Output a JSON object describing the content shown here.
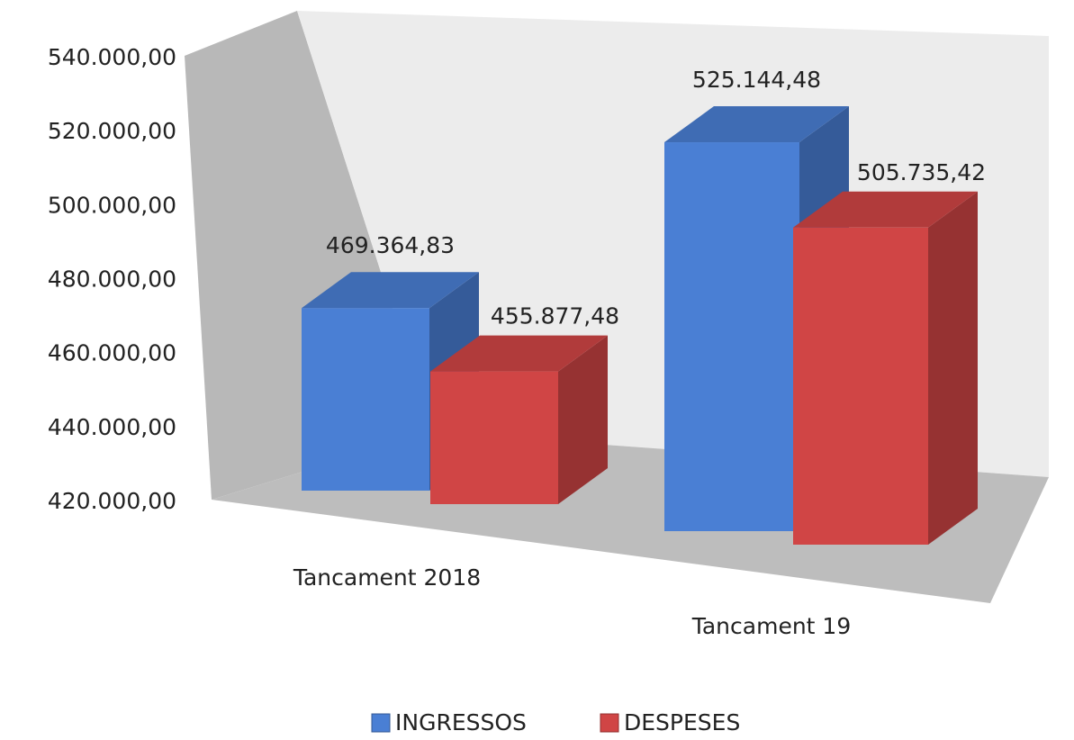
{
  "chart_data": {
    "type": "bar3d",
    "categories": [
      "Tancament 2018",
      "Tancament 19"
    ],
    "series": [
      {
        "name": "INGRESSOS",
        "color": "#4a7fd4",
        "values": [
          469364.83,
          525144.48
        ],
        "value_labels": [
          "469.364,83",
          "525.144,48"
        ]
      },
      {
        "name": "DESPESES",
        "color": "#d04545",
        "values": [
          455877.48,
          505735.42
        ],
        "value_labels": [
          "455.877,48",
          "505.735,42"
        ]
      }
    ],
    "ylim": [
      420000,
      540000
    ],
    "yticks": [
      {
        "value": 420000,
        "label": "420.000,00"
      },
      {
        "value": 440000,
        "label": "440.000,00"
      },
      {
        "value": 460000,
        "label": "460.000,00"
      },
      {
        "value": 480000,
        "label": "480.000,00"
      },
      {
        "value": 500000,
        "label": "500.000,00"
      },
      {
        "value": 520000,
        "label": "520.000,00"
      },
      {
        "value": 540000,
        "label": "540.000,00"
      }
    ],
    "legend": "bottom"
  }
}
